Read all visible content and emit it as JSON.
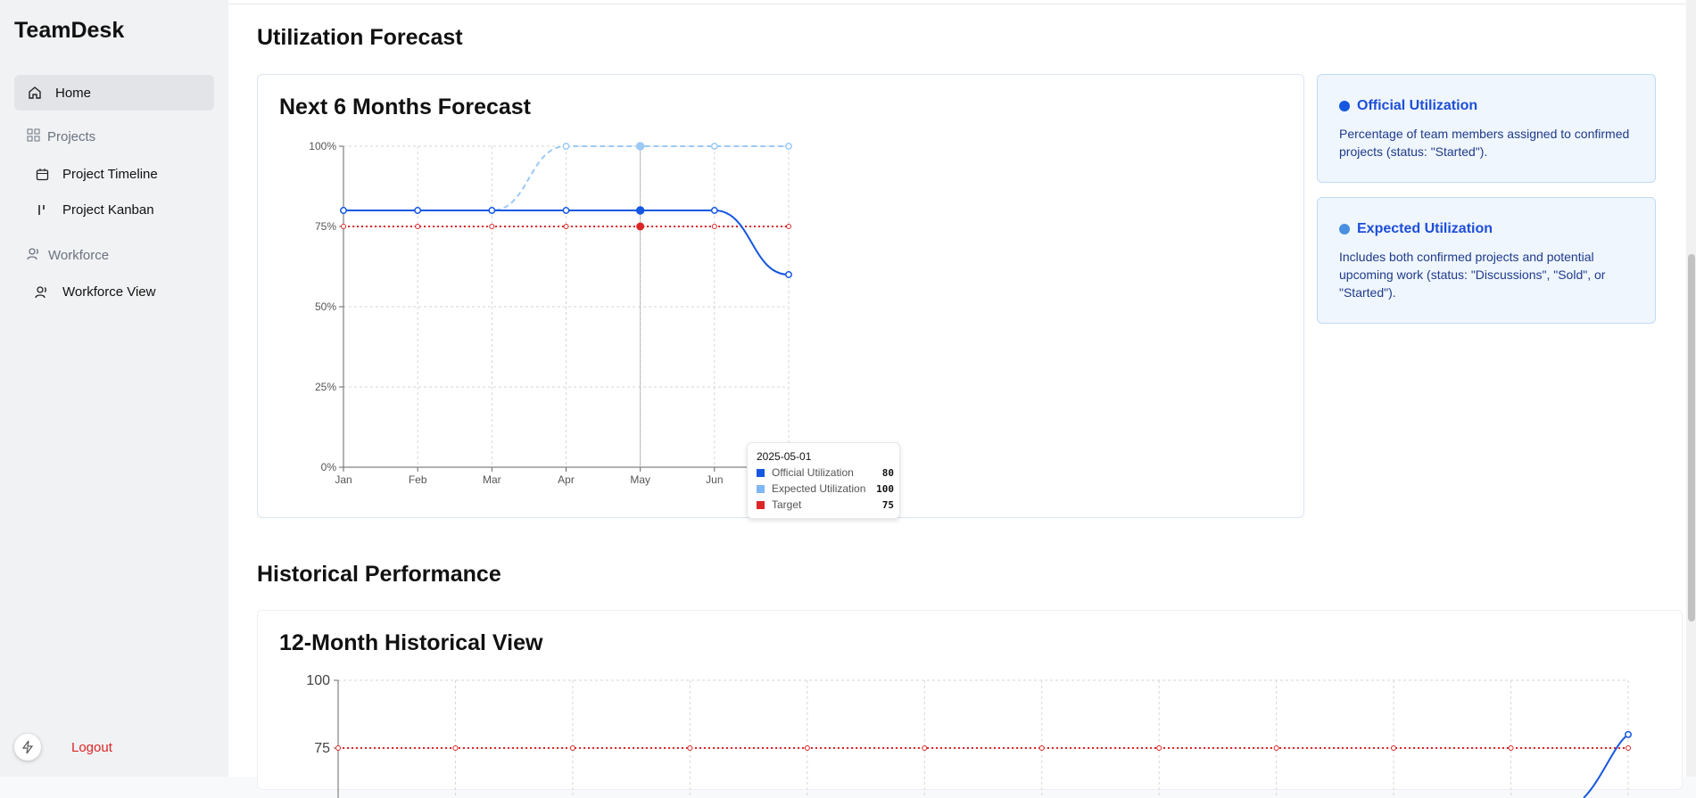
{
  "app": {
    "name": "TeamDesk"
  },
  "sidebar": {
    "items": [
      {
        "label": "Home",
        "icon": "home-icon",
        "active": true
      },
      {
        "label": "Projects",
        "icon": "grid-icon",
        "group": true
      },
      {
        "label": "Project Timeline",
        "icon": "calendar-icon"
      },
      {
        "label": "Project Kanban",
        "icon": "kanban-icon"
      },
      {
        "label": "Workforce",
        "icon": "users-icon",
        "group": true
      },
      {
        "label": "Workforce View",
        "icon": "users-icon"
      }
    ],
    "logout": "Logout"
  },
  "forecast": {
    "section_title": "Utilization Forecast",
    "card_title": "Next 6 Months Forecast",
    "info": [
      {
        "title": "Official Utilization",
        "color": "#1d4ed8",
        "desc": "Percentage of team members assigned to confirmed projects (status: \"Started\")."
      },
      {
        "title": "Expected Utilization",
        "color": "#3b82f6",
        "desc": "Includes both confirmed projects and potential upcoming work (status: \"Discussions\", \"Sold\", or \"Started\")."
      }
    ],
    "tooltip": {
      "date": "2025-05-01",
      "rows": [
        {
          "label": "Official Utilization",
          "value": "80",
          "color": "#1557e0"
        },
        {
          "label": "Expected Utilization",
          "value": "100",
          "color": "#7fb7f4"
        },
        {
          "label": "Target",
          "value": "75",
          "color": "#dc2626"
        }
      ]
    }
  },
  "history": {
    "section_title": "Historical Performance",
    "card_title": "12-Month Historical View"
  },
  "chart_data": [
    {
      "type": "line",
      "categories": [
        "Jan",
        "Feb",
        "Mar",
        "Apr",
        "May",
        "Jun",
        "Jul"
      ],
      "y_ticks": [
        "0%",
        "25%",
        "50%",
        "75%",
        "100%"
      ],
      "ylim": [
        0,
        100
      ],
      "grid": true,
      "series": [
        {
          "name": "Official Utilization",
          "color": "#1557e0",
          "style": "solid",
          "values": [
            80,
            80,
            80,
            80,
            80,
            80,
            60
          ]
        },
        {
          "name": "Expected Utilization",
          "color": "#9cc9f5",
          "style": "dashed",
          "values": [
            80,
            80,
            80,
            100,
            100,
            100,
            100
          ]
        },
        {
          "name": "Target",
          "color": "#dc2626",
          "style": "dotted",
          "values": [
            75,
            75,
            75,
            75,
            75,
            75,
            75
          ]
        }
      ],
      "highlight_index": 4
    },
    {
      "type": "line",
      "y_ticks": [
        "75",
        "100"
      ],
      "grid": true,
      "series": [
        {
          "name": "Target",
          "color": "#dc2626",
          "style": "dotted",
          "values": [
            75,
            75,
            75,
            75,
            75,
            75,
            75,
            75,
            75,
            75,
            75,
            75
          ]
        },
        {
          "name": "Official Utilization",
          "color": "#1557e0",
          "style": "solid",
          "last_value": 80
        }
      ]
    }
  ]
}
